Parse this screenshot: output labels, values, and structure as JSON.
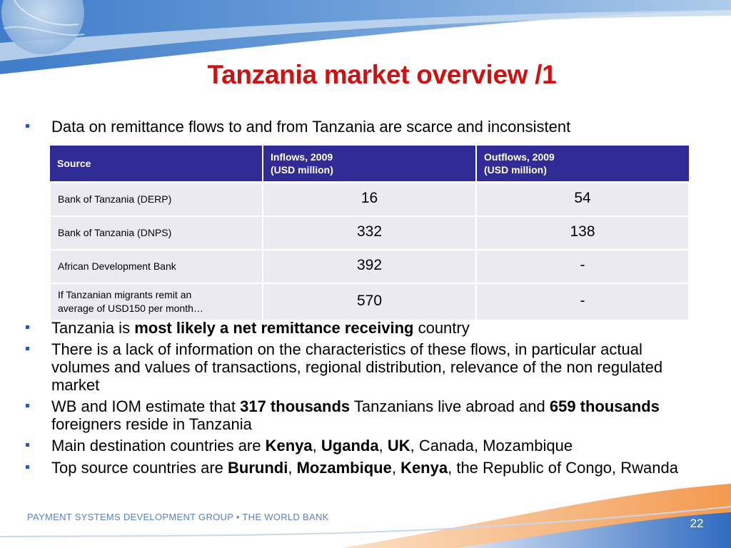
{
  "slide": {
    "title": "Tanzania market overview /1",
    "intro_bullet": "Data on remittance flows to and from Tanzania are scarce and inconsistent"
  },
  "table": {
    "headers": [
      [
        "Source",
        ""
      ],
      [
        "Inflows, 2009",
        "(USD million)"
      ],
      [
        "Outflows, 2009",
        "(USD million)"
      ]
    ],
    "rows": [
      {
        "source": [
          "Bank of Tanzania (DERP)",
          ""
        ],
        "inflows": "16",
        "outflows": "54"
      },
      {
        "source": [
          "Bank of Tanzania (DNPS)",
          ""
        ],
        "inflows": "332",
        "outflows": "138"
      },
      {
        "source": [
          "African Development Bank",
          ""
        ],
        "inflows": "392",
        "outflows": "-"
      },
      {
        "source": [
          "If Tanzanian migrants remit an",
          "average of USD150 per month…"
        ],
        "inflows": "570",
        "outflows": "-"
      }
    ]
  },
  "bullets": [
    {
      "parts": [
        "Tanzania is ",
        "most likely a net remittance receiving",
        " country"
      ]
    },
    {
      "parts": [
        "There is a lack of information on the characteristics of these flows, in particular actual volumes and values of transactions, regional distribution, relevance of the non regulated market"
      ]
    },
    {
      "parts": [
        "WB and IOM estimate that ",
        "317 thousands",
        " Tanzanians live abroad and ",
        "659 thousands",
        " foreigners reside in Tanzania"
      ]
    },
    {
      "parts": [
        "Main destination countries are ",
        "Kenya",
        ", ",
        "Uganda",
        ", ",
        "UK",
        ", Canada, Mozambique"
      ]
    },
    {
      "parts": [
        "Top source countries are ",
        "Burundi",
        ", ",
        "Mozambique",
        ", ",
        "Kenya",
        ", the Republic of Congo, Rwanda"
      ]
    }
  ],
  "footer": {
    "organization": "PAYMENT SYSTEMS DEVELOPMENT GROUP • THE WORLD BANK",
    "page_number": "22"
  },
  "colors": {
    "title": "#d01111",
    "table_header": "#302b95",
    "table_cell": "#ebebf1",
    "bullet_marker": "#2c55b5",
    "footer_text": "#5d7fbf",
    "bottom_swoosh": "#f0a060"
  }
}
